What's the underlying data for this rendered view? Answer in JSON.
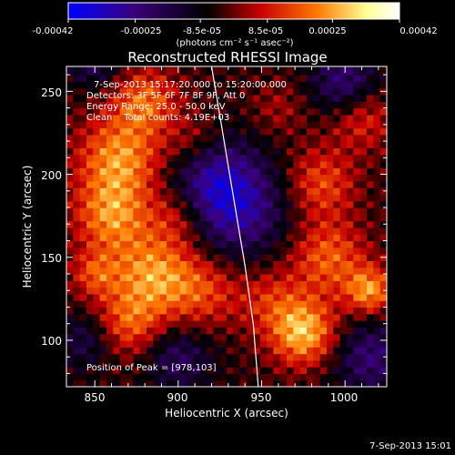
{
  "chart_data": {
    "type": "heatmap",
    "title": "Reconstructed RHESSI Image",
    "xlabel": "Heliocentric X (arcsec)",
    "ylabel": "Heliocentric Y (arcsec)",
    "xlim": [
      833,
      1025
    ],
    "ylim": [
      72,
      265
    ],
    "xticks": [
      850,
      900,
      950,
      1000
    ],
    "yticks": [
      100,
      150,
      200,
      250
    ],
    "grid": false,
    "colorbar": {
      "position": "top",
      "ticks": [
        "-0.00042",
        "-0.00025",
        "-8.5e-05",
        "8.5e-05",
        "0.00025",
        "0.00042"
      ],
      "tick_values": [
        -0.00042,
        -0.00025,
        -8.5e-05,
        8.5e-05,
        0.00025,
        0.00042
      ],
      "range": [
        -0.00042,
        0.00042
      ],
      "unit": "(photons cm⁻² s⁻¹ asec⁻²)",
      "colors": [
        "#0000ff",
        "#3a0078",
        "#000000",
        "#c80000",
        "#ff7800",
        "#ffff96",
        "#ffffff"
      ]
    },
    "annotations": [
      "7-Sep-2013 15:17:20.000 to 15:20:00.000",
      "Detectors: 3F 5F 6F 7F 8F 9F, Att 0",
      "Energy Range: 25.0 - 50.0 keV",
      "Clean    Total counts: 4.19E+03",
      "Position of Peak = [978,103]"
    ],
    "peak": {
      "x": 978,
      "y": 103
    },
    "limb_line": {
      "x": [
        920,
        925,
        930,
        935,
        940,
        945,
        948
      ],
      "y": [
        265,
        235,
        205,
        175,
        145,
        110,
        72
      ]
    }
  },
  "footer": {
    "timestamp": "7-Sep-2013 15:01"
  }
}
